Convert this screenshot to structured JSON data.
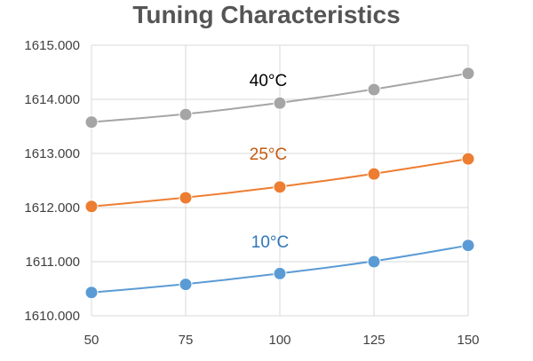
{
  "chart_data": {
    "type": "line",
    "title": "Tuning Characteristics",
    "xlabel": "",
    "ylabel": "",
    "x": [
      50,
      75,
      100,
      125,
      150
    ],
    "xlim": [
      50,
      150
    ],
    "ylim": [
      1610,
      1615
    ],
    "y_ticks": [
      "1610.000",
      "1611.000",
      "1612.000",
      "1613.000",
      "1614.000",
      "1615.000"
    ],
    "x_ticks": [
      "50",
      "75",
      "100",
      "125",
      "150"
    ],
    "grid": true,
    "series": [
      {
        "name": "40°C",
        "color": "#a5a5a5",
        "values": [
          1613.58,
          1613.72,
          1613.93,
          1614.18,
          1614.48
        ]
      },
      {
        "name": "25°C",
        "color": "#ed7d31",
        "values": [
          1612.02,
          1612.18,
          1612.38,
          1612.62,
          1612.9
        ]
      },
      {
        "name": "10°C",
        "color": "#5b9bd5",
        "values": [
          1610.43,
          1610.58,
          1610.78,
          1611.0,
          1611.3
        ]
      }
    ]
  }
}
